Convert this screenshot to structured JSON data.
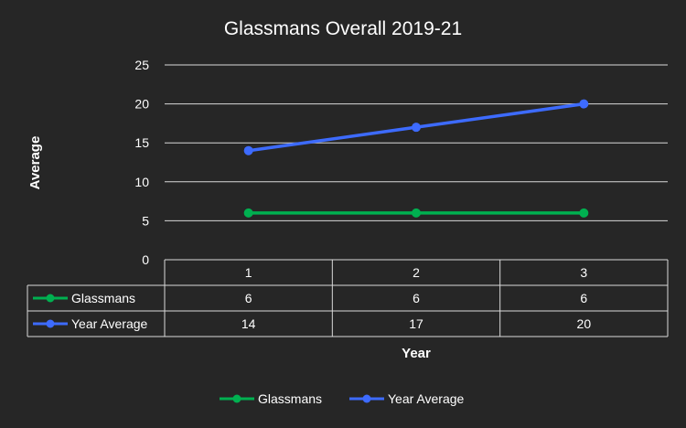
{
  "chart_data": {
    "type": "line",
    "title": "Glassmans Overall 2019-21",
    "xlabel": "Year",
    "ylabel": "Average",
    "categories": [
      "1",
      "2",
      "3"
    ],
    "series": [
      {
        "name": "Glassmans",
        "values": [
          6,
          6,
          6
        ],
        "color": "#00b050"
      },
      {
        "name": "Year Average",
        "values": [
          14,
          17,
          20
        ],
        "color": "#3d6bff"
      }
    ],
    "ylim": [
      0,
      25
    ],
    "yticks": [
      0,
      5,
      10,
      15,
      20,
      25
    ],
    "grid": true,
    "data_table": true,
    "legend_position": "bottom",
    "background_color": "#262626",
    "gridline_color": "#d9d9d9"
  }
}
